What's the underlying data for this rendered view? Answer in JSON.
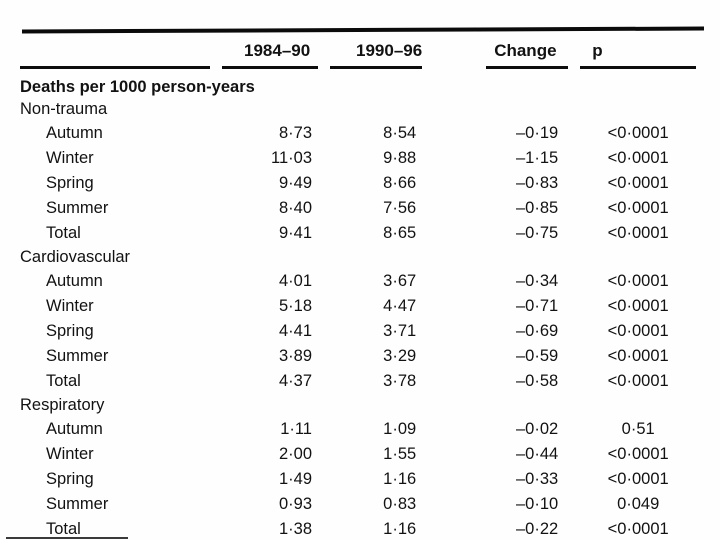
{
  "page": {
    "background": "#fefefe",
    "text_color": "#121212",
    "rule_color": "#0b0b0b"
  },
  "table": {
    "columns": [
      {
        "label": ""
      },
      {
        "label": "1984–90"
      },
      {
        "label": "1990–96"
      },
      {
        "label": "Change"
      },
      {
        "label": "p"
      }
    ],
    "units_row": "Deaths per 1000 person-years",
    "sections": [
      {
        "label": "Non-trauma",
        "rows": [
          {
            "label": "Autumn",
            "y1984_90": "8·73",
            "y1990_96": "8·54",
            "change": "–0·19",
            "p": "<0·0001"
          },
          {
            "label": "Winter",
            "y1984_90": "11·03",
            "y1990_96": "9·88",
            "change": "–1·15",
            "p": "<0·0001"
          },
          {
            "label": "Spring",
            "y1984_90": "9·49",
            "y1990_96": "8·66",
            "change": "–0·83",
            "p": "<0·0001"
          },
          {
            "label": "Summer",
            "y1984_90": "8·40",
            "y1990_96": "7·56",
            "change": "–0·85",
            "p": "<0·0001"
          },
          {
            "label": "Total",
            "y1984_90": "9·41",
            "y1990_96": "8·65",
            "change": "–0·75",
            "p": "<0·0001"
          }
        ]
      },
      {
        "label": "Cardiovascular",
        "rows": [
          {
            "label": "Autumn",
            "y1984_90": "4·01",
            "y1990_96": "3·67",
            "change": "–0·34",
            "p": "<0·0001"
          },
          {
            "label": "Winter",
            "y1984_90": "5·18",
            "y1990_96": "4·47",
            "change": "–0·71",
            "p": "<0·0001"
          },
          {
            "label": "Spring",
            "y1984_90": "4·41",
            "y1990_96": "3·71",
            "change": "–0·69",
            "p": "<0·0001"
          },
          {
            "label": "Summer",
            "y1984_90": "3·89",
            "y1990_96": "3·29",
            "change": "–0·59",
            "p": "<0·0001"
          },
          {
            "label": "Total",
            "y1984_90": "4·37",
            "y1990_96": "3·78",
            "change": "–0·58",
            "p": "<0·0001"
          }
        ]
      },
      {
        "label": "Respiratory",
        "rows": [
          {
            "label": "Autumn",
            "y1984_90": "1·11",
            "y1990_96": "1·09",
            "change": "–0·02",
            "p": "0·51"
          },
          {
            "label": "Winter",
            "y1984_90": "2·00",
            "y1990_96": "1·55",
            "change": "–0·44",
            "p": "<0·0001"
          },
          {
            "label": "Spring",
            "y1984_90": "1·49",
            "y1990_96": "1·16",
            "change": "–0·33",
            "p": "<0·0001"
          },
          {
            "label": "Summer",
            "y1984_90": "0·93",
            "y1990_96": "0·83",
            "change": "–0·10",
            "p": "0·049"
          },
          {
            "label": "Total",
            "y1984_90": "1·38",
            "y1990_96": "1·16",
            "change": "–0·22",
            "p": "<0·0001"
          }
        ]
      }
    ]
  }
}
